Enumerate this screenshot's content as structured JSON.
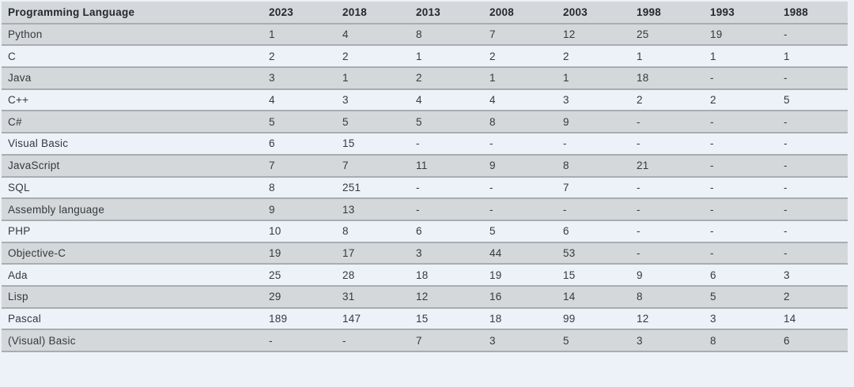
{
  "colors": {
    "background": "#edf1f8",
    "row_stripe": "#d4d8da",
    "row_border": "#a8adb1",
    "cell_text": "#36393d",
    "header_text": "#26292c"
  },
  "chart_data": {
    "type": "table",
    "title": "",
    "columns": [
      "Programming Language",
      "2023",
      "2018",
      "2013",
      "2008",
      "2003",
      "1998",
      "1993",
      "1988"
    ],
    "rows": [
      {
        "cells": [
          "Python",
          "1",
          "4",
          "8",
          "7",
          "12",
          "25",
          "19",
          "-"
        ]
      },
      {
        "cells": [
          "C",
          "2",
          "2",
          "1",
          "2",
          "2",
          "1",
          "1",
          "1"
        ]
      },
      {
        "cells": [
          "Java",
          "3",
          "1",
          "2",
          "1",
          "1",
          "18",
          "-",
          "-"
        ]
      },
      {
        "cells": [
          "C++",
          "4",
          "3",
          "4",
          "4",
          "3",
          "2",
          "2",
          "5"
        ]
      },
      {
        "cells": [
          "C#",
          "5",
          "5",
          "5",
          "8",
          "9",
          "-",
          "-",
          "-"
        ]
      },
      {
        "cells": [
          "Visual Basic",
          "6",
          "15",
          "-",
          "-",
          "-",
          "-",
          "-",
          "-"
        ]
      },
      {
        "cells": [
          "JavaScript",
          "7",
          "7",
          "11",
          "9",
          "8",
          "21",
          "-",
          "-"
        ]
      },
      {
        "cells": [
          "SQL",
          "8",
          "251",
          "-",
          "-",
          "7",
          "-",
          "-",
          "-"
        ]
      },
      {
        "cells": [
          "Assembly language",
          "9",
          "13",
          "-",
          "-",
          "-",
          "-",
          "-",
          "-"
        ]
      },
      {
        "cells": [
          "PHP",
          "10",
          "8",
          "6",
          "5",
          "6",
          "-",
          "-",
          "-"
        ]
      },
      {
        "cells": [
          "Objective-C",
          "19",
          "17",
          "3",
          "44",
          "53",
          "-",
          "-",
          "-"
        ]
      },
      {
        "cells": [
          "Ada",
          "25",
          "28",
          "18",
          "19",
          "15",
          "9",
          "6",
          "3"
        ]
      },
      {
        "cells": [
          "Lisp",
          "29",
          "31",
          "12",
          "16",
          "14",
          "8",
          "5",
          "2"
        ]
      },
      {
        "cells": [
          "Pascal",
          "189",
          "147",
          "15",
          "18",
          "99",
          "12",
          "3",
          "14"
        ]
      },
      {
        "cells": [
          "(Visual) Basic",
          "-",
          "-",
          "7",
          "3",
          "5",
          "3",
          "8",
          "6"
        ]
      }
    ]
  }
}
